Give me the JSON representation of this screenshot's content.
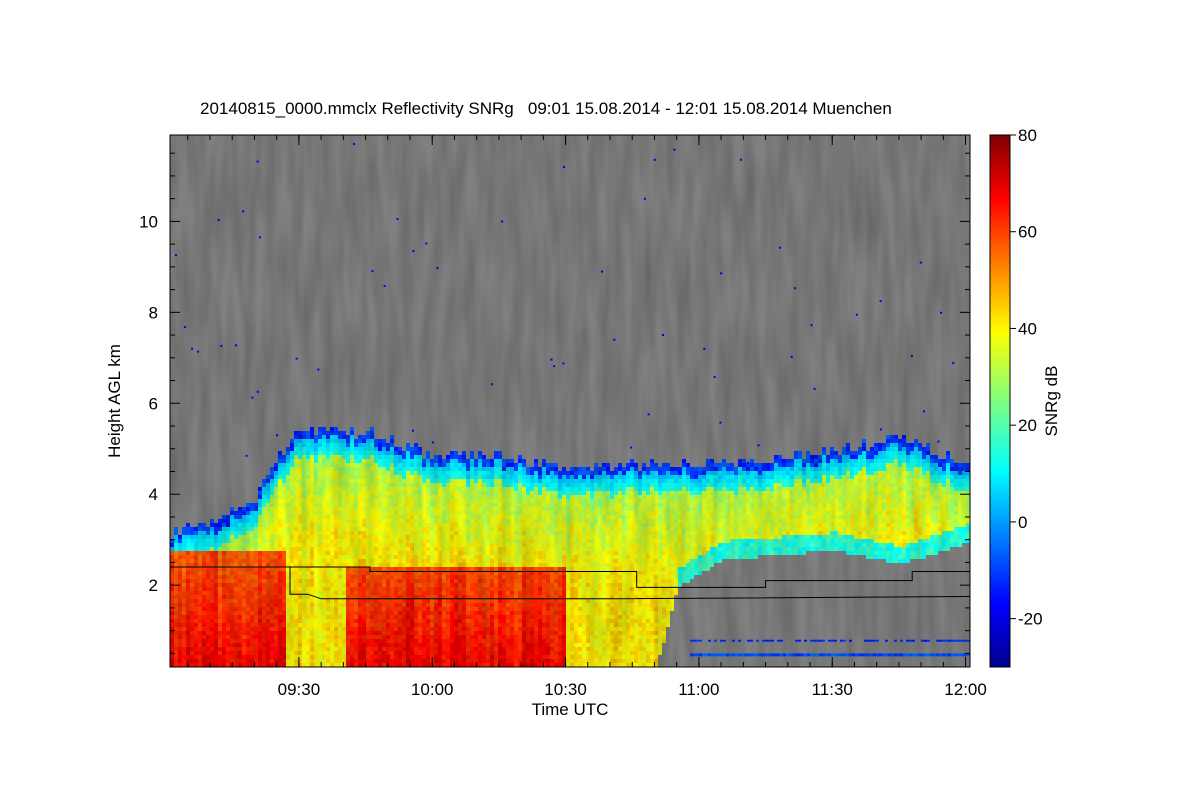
{
  "chart_data": {
    "type": "heatmap",
    "title": "20140815_0000.mmclx Reflectivity SNRg   09:01 15.08.2014 - 12:01 15.08.2014 Muenchen",
    "xlabel": "Time UTC",
    "ylabel": "Height AGL km",
    "colorbar_label": "SNRg dB",
    "x_range": [
      "09:01",
      "12:01"
    ],
    "x_ticks": [
      "09:30",
      "10:00",
      "10:30",
      "11:00",
      "11:30",
      "12:00"
    ],
    "y_range_km": [
      0.2,
      11.9
    ],
    "y_ticks": [
      2,
      4,
      6,
      8,
      10
    ],
    "colorbar_range": [
      -30,
      80
    ],
    "colorbar_ticks": [
      -20,
      0,
      20,
      40,
      60,
      80
    ],
    "colormap": "jet",
    "background_color": "#808080",
    "cloud_top_km": [
      {
        "t": "09:01",
        "h": 3.2
      },
      {
        "t": "09:10",
        "h": 3.4
      },
      {
        "t": "09:20",
        "h": 4.0
      },
      {
        "t": "09:25",
        "h": 4.8
      },
      {
        "t": "09:30",
        "h": 5.5
      },
      {
        "t": "09:45",
        "h": 5.4
      },
      {
        "t": "10:00",
        "h": 4.9
      },
      {
        "t": "10:15",
        "h": 4.9
      },
      {
        "t": "10:30",
        "h": 4.6
      },
      {
        "t": "10:45",
        "h": 4.7
      },
      {
        "t": "11:00",
        "h": 4.7
      },
      {
        "t": "11:15",
        "h": 4.8
      },
      {
        "t": "11:30",
        "h": 5.0
      },
      {
        "t": "11:45",
        "h": 5.3
      },
      {
        "t": "12:01",
        "h": 4.6
      }
    ],
    "cloud_base_km": [
      {
        "t": "09:01",
        "h": 0.2
      },
      {
        "t": "10:50",
        "h": 0.2
      },
      {
        "t": "10:55",
        "h": 2.0
      },
      {
        "t": "11:05",
        "h": 2.6
      },
      {
        "t": "11:30",
        "h": 2.8
      },
      {
        "t": "11:45",
        "h": 2.5
      },
      {
        "t": "12:01",
        "h": 3.0
      }
    ],
    "overlay_lines": [
      {
        "name": "upper",
        "points": [
          [
            "09:01",
            2.4
          ],
          [
            "09:46",
            2.4
          ],
          [
            "09:46",
            2.3
          ],
          [
            "10:46",
            2.3
          ],
          [
            "10:46",
            1.95
          ],
          [
            "11:15",
            1.95
          ],
          [
            "11:15",
            2.1
          ],
          [
            "11:48",
            2.1
          ],
          [
            "11:48",
            2.3
          ],
          [
            "12:01",
            2.3
          ]
        ]
      },
      {
        "name": "lower",
        "points": [
          [
            "09:28",
            2.4
          ],
          [
            "09:28",
            1.8
          ],
          [
            "09:32",
            1.8
          ],
          [
            "09:35",
            1.7
          ],
          [
            "10:40",
            1.7
          ],
          [
            "12:01",
            1.75
          ]
        ]
      }
    ]
  }
}
